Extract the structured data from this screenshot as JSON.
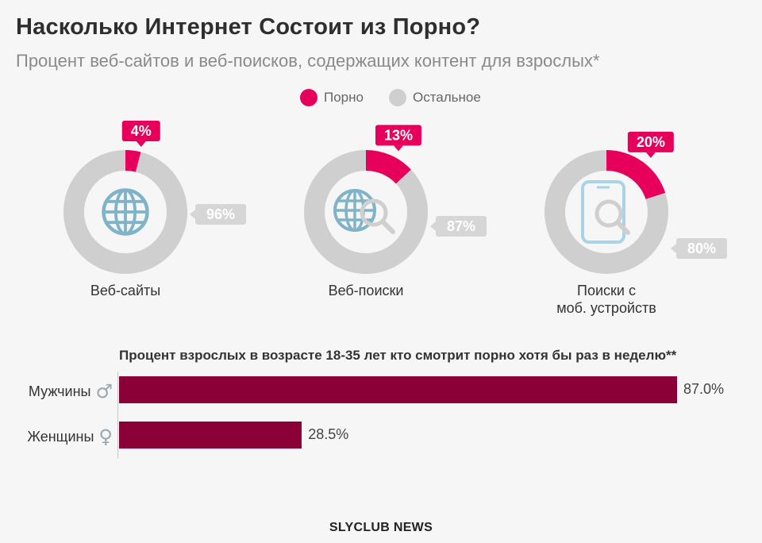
{
  "title": "Насколько Интернет Состоит из Порно?",
  "subtitle": "Процент веб-сайтов и веб-поисков, содержащих контент для взрослых*",
  "legend": [
    {
      "label": "Порно",
      "color": "#e6005c"
    },
    {
      "label": "Остальное",
      "color": "#cfcfcf"
    }
  ],
  "footer": "SLYCLUB NEWS",
  "chart_data": [
    {
      "type": "pie",
      "categories": [
        "Веб-сайты",
        "Веб-поиски",
        "Поиски с моб. устройств"
      ],
      "series": [
        {
          "name": "Порно",
          "values": [
            4,
            13,
            20
          ],
          "color": "#e6005c"
        },
        {
          "name": "Остальное",
          "values": [
            96,
            87,
            80
          ],
          "color": "#cfcfcf"
        }
      ],
      "donuts": [
        {
          "label_lines": [
            "Веб-сайты"
          ],
          "porn": 4,
          "rest": 96,
          "porn_label": "4%",
          "rest_label": "96%",
          "icon": "globe-icon"
        },
        {
          "label_lines": [
            "Веб-поиски"
          ],
          "porn": 13,
          "rest": 87,
          "porn_label": "13%",
          "rest_label": "87%",
          "icon": "globe-search-icon"
        },
        {
          "label_lines": [
            "Поиски с",
            "моб. устройств"
          ],
          "porn": 20,
          "rest": 80,
          "porn_label": "20%",
          "rest_label": "80%",
          "icon": "phone-search-icon"
        }
      ]
    },
    {
      "type": "bar",
      "title": "Процент взрослых в возрасте 18-35 лет кто смотрит порно хотя бы раз в неделю**",
      "categories": [
        "Мужчины",
        "Женщины"
      ],
      "symbols": [
        "♂",
        "♀"
      ],
      "values": [
        87.0,
        28.5
      ],
      "value_labels": [
        "87.0%",
        "28.5%"
      ],
      "color": "#8b0037",
      "xlim": [
        0,
        100
      ]
    }
  ]
}
